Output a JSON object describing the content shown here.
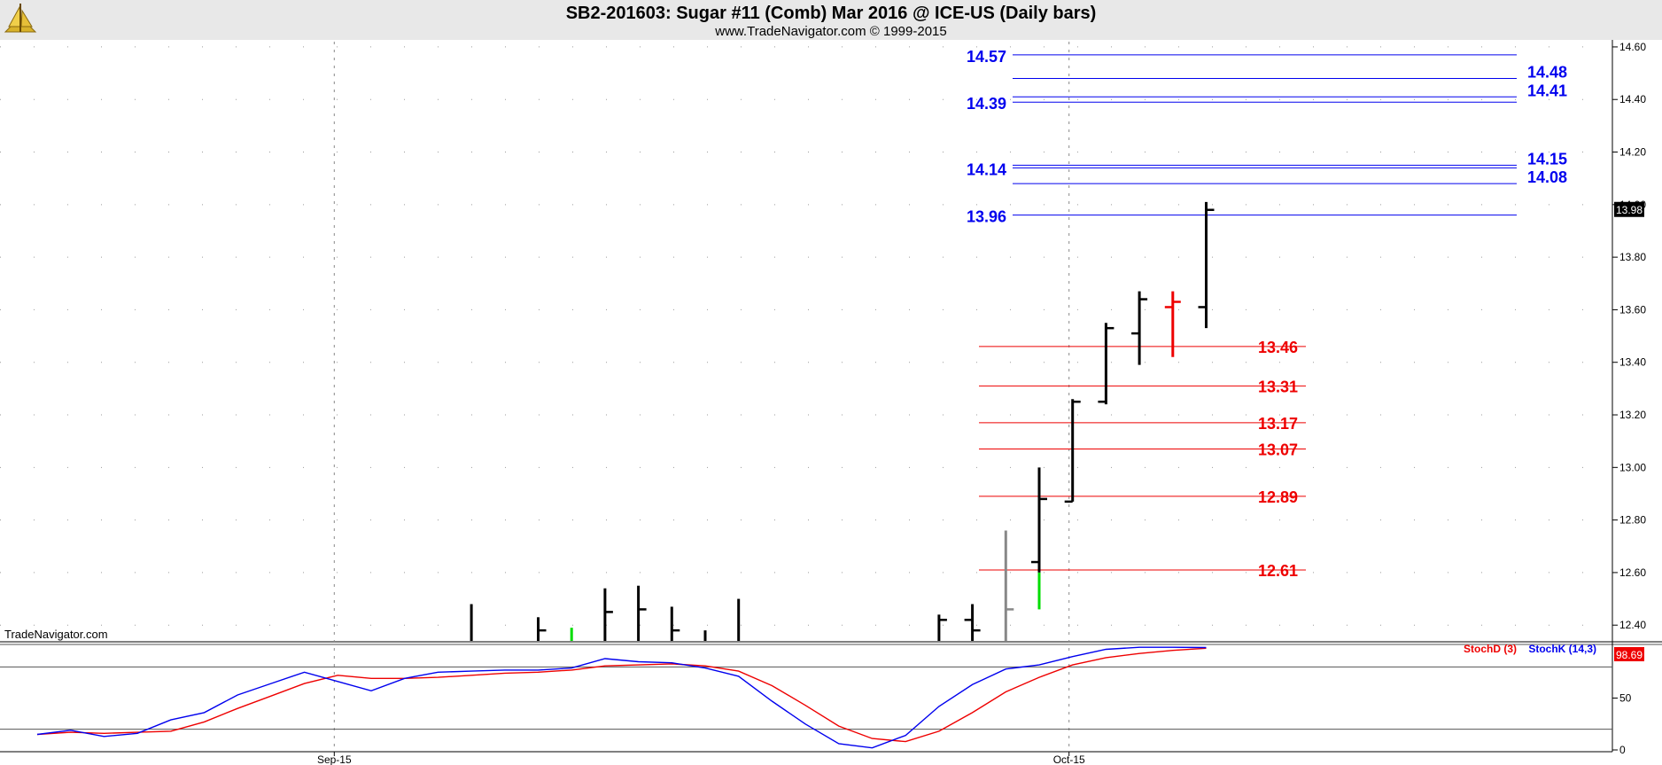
{
  "header": {
    "title": "SB2-201603:  Sugar #11 (Comb) Mar 2016 @ ICE-US  (Daily bars)",
    "subtitle": "www.TradeNavigator.com © 1999-2015",
    "brand_watermark": "TradeNavigator.com"
  },
  "colors": {
    "resistance": "#0000ee",
    "support": "#ee0000",
    "bar": "#000000",
    "bar_down": "#ee0000",
    "bar_up_green": "#00dd00",
    "bar_gray": "#888888",
    "stoch_d": "#ee0000",
    "stoch_k": "#0000ee"
  },
  "chart_data": [
    {
      "type": "ohlc",
      "title": "SB2-201603:  Sugar #11 (Comb) Mar 2016 @ ICE-US  (Daily bars)",
      "ylim": [
        12.34,
        14.62
      ],
      "y_ticks": [
        "14.60",
        "14.40",
        "14.20",
        "14.00",
        "13.80",
        "13.60",
        "13.40",
        "13.20",
        "13.00",
        "12.80",
        "12.60",
        "12.40"
      ],
      "x_ticks": [
        {
          "label": "Sep-15",
          "index": 9
        },
        {
          "label": "Oct-15",
          "index": 31
        }
      ],
      "last_price": "13.98",
      "bars": [
        {
          "i": 13,
          "o": 12.34,
          "h": 12.48,
          "l": 12.34,
          "c": 12.34
        },
        {
          "i": 15,
          "o": 12.34,
          "h": 12.43,
          "l": 12.34,
          "c": 12.38
        },
        {
          "i": 16,
          "o": 12.34,
          "h": 12.39,
          "l": 12.34,
          "c": 12.34,
          "color": "green"
        },
        {
          "i": 17,
          "o": 12.34,
          "h": 12.54,
          "l": 12.34,
          "c": 12.45
        },
        {
          "i": 18,
          "o": 12.34,
          "h": 12.55,
          "l": 12.34,
          "c": 12.46
        },
        {
          "i": 19,
          "o": 12.34,
          "h": 12.47,
          "l": 12.34,
          "c": 12.38
        },
        {
          "i": 20,
          "o": 12.34,
          "h": 12.38,
          "l": 12.34,
          "c": 12.34
        },
        {
          "i": 21,
          "o": 12.34,
          "h": 12.5,
          "l": 12.34,
          "c": 12.34
        },
        {
          "i": 27,
          "o": 12.34,
          "h": 12.44,
          "l": 12.34,
          "c": 12.42
        },
        {
          "i": 28,
          "o": 12.42,
          "h": 12.48,
          "l": 12.34,
          "c": 12.38
        },
        {
          "i": 29,
          "o": 12.34,
          "h": 12.76,
          "l": 12.34,
          "c": 12.46,
          "color": "gray"
        },
        {
          "i": 30,
          "o": 12.64,
          "h": 13.0,
          "l": 12.46,
          "c": 12.88,
          "low_segment_color": "green",
          "low_segment_top": 12.6
        },
        {
          "i": 31,
          "o": 12.87,
          "h": 13.26,
          "l": 12.87,
          "c": 13.25
        },
        {
          "i": 32,
          "o": 13.25,
          "h": 13.55,
          "l": 13.24,
          "c": 13.53
        },
        {
          "i": 33,
          "o": 13.51,
          "h": 13.67,
          "l": 13.39,
          "c": 13.64
        },
        {
          "i": 34,
          "o": 13.61,
          "h": 13.67,
          "l": 13.42,
          "c": 13.63,
          "color": "red"
        },
        {
          "i": 35,
          "o": 13.61,
          "h": 14.01,
          "l": 13.53,
          "c": 13.98
        }
      ],
      "resistance_levels": [
        {
          "value": 14.57,
          "label": "14.57",
          "side": "left"
        },
        {
          "value": 14.48,
          "label": "14.48",
          "side": "right"
        },
        {
          "value": 14.41,
          "label": "14.41",
          "side": "right"
        },
        {
          "value": 14.39,
          "label": "14.39",
          "side": "left"
        },
        {
          "value": 14.15,
          "label": "14.15",
          "side": "right"
        },
        {
          "value": 14.14,
          "label": "14.14",
          "side": "left"
        },
        {
          "value": 14.08,
          "label": "14.08",
          "side": "right"
        },
        {
          "value": 13.96,
          "label": "13.96",
          "side": "left"
        }
      ],
      "support_levels": [
        {
          "value": 13.46,
          "label": "13.46"
        },
        {
          "value": 13.31,
          "label": "13.31"
        },
        {
          "value": 13.17,
          "label": "13.17"
        },
        {
          "value": 13.07,
          "label": "13.07"
        },
        {
          "value": 12.89,
          "label": "12.89"
        },
        {
          "value": 12.61,
          "label": "12.61"
        }
      ]
    },
    {
      "type": "line",
      "title": "",
      "ylim": [
        0,
        100
      ],
      "y_ticks": [
        "50",
        "0"
      ],
      "reference_lines": [
        80,
        20
      ],
      "last_value": "98.69",
      "x": [
        0,
        1,
        2,
        3,
        4,
        5,
        6,
        7,
        8,
        9,
        10,
        11,
        12,
        13,
        14,
        15,
        16,
        17,
        18,
        19,
        20,
        21,
        22,
        23,
        24,
        25,
        26,
        27,
        28,
        29,
        30,
        31,
        32,
        33,
        34,
        35
      ],
      "series": [
        {
          "name": "StochD (3)",
          "values": [
            15,
            17,
            16,
            17,
            18,
            27,
            40,
            52,
            64,
            72,
            69,
            69,
            70,
            72,
            74,
            75,
            77,
            81,
            82,
            83,
            81,
            76,
            62,
            43,
            23,
            11,
            8,
            18,
            36,
            56,
            70,
            82,
            89,
            93,
            96,
            98
          ]
        },
        {
          "name": "StochK (14,3)",
          "values": [
            15,
            19,
            13,
            16,
            29,
            36,
            53,
            64,
            75,
            66,
            57,
            69,
            75,
            76,
            77,
            77,
            79,
            88,
            85,
            84,
            79,
            71,
            47,
            25,
            6,
            2,
            14,
            42,
            63,
            78,
            82,
            90,
            97,
            99,
            99,
            98.69
          ]
        }
      ]
    }
  ]
}
